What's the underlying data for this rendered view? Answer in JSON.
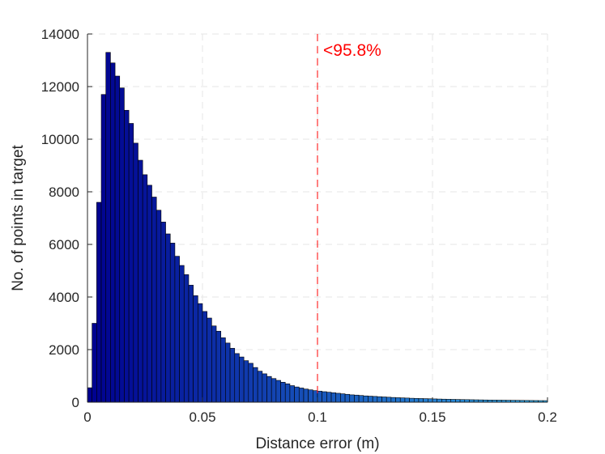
{
  "chart_data": {
    "type": "bar",
    "title": "",
    "xlabel": "Distance error (m)",
    "ylabel": "No. of points in target",
    "xlim": [
      0,
      0.2
    ],
    "ylim": [
      0,
      14000
    ],
    "x_ticks": [
      "0",
      "0.05",
      "0.1",
      "0.15",
      "0.2"
    ],
    "x_tick_values": [
      0,
      0.05,
      0.1,
      0.15,
      0.2
    ],
    "y_ticks": [
      "0",
      "2000",
      "4000",
      "6000",
      "8000",
      "10000",
      "12000",
      "14000"
    ],
    "y_tick_values": [
      0,
      2000,
      4000,
      6000,
      8000,
      10000,
      12000,
      14000
    ],
    "grid": true,
    "bin_width": 0.002,
    "bin_start": 0,
    "values": [
      550,
      3000,
      7600,
      11700,
      13300,
      12900,
      12400,
      11950,
      11100,
      10600,
      9850,
      9200,
      8650,
      8250,
      7800,
      7300,
      6850,
      6400,
      6050,
      5550,
      5200,
      4850,
      4450,
      4050,
      3750,
      3450,
      3200,
      2900,
      2700,
      2450,
      2250,
      2050,
      1850,
      1720,
      1580,
      1480,
      1320,
      1180,
      1080,
      980,
      900,
      830,
      760,
      700,
      630,
      580,
      540,
      500,
      470,
      440,
      420,
      400,
      380,
      360,
      340,
      320,
      300,
      280,
      270,
      255,
      240,
      230,
      220,
      210,
      200,
      190,
      180,
      172,
      165,
      158,
      150,
      145,
      140,
      135,
      130,
      125,
      120,
      116,
      112,
      108,
      104,
      100,
      97,
      94,
      91,
      88,
      85,
      83,
      81,
      79,
      77,
      75,
      73,
      71,
      69,
      67,
      65,
      63,
      61,
      60
    ],
    "annotation": {
      "x": 0.1,
      "label": "<95.8%",
      "color": "#ff0000"
    },
    "colors": {
      "bar_start": "#00008f",
      "bar_end": "#2fa8e6",
      "bar_edge": "#000000",
      "grid": "#e6e6e6",
      "axis": "#262626"
    }
  }
}
